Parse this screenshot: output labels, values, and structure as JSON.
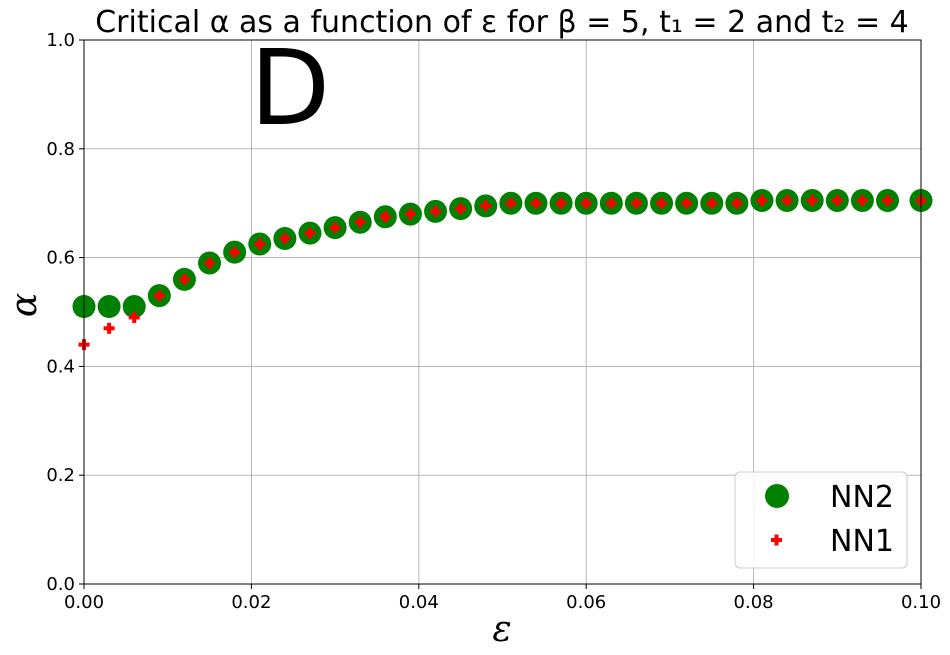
{
  "chart_data": {
    "type": "scatter",
    "title": "Critical α as a function of ε for β = 5, t₁ = 2 and t₂ = 4",
    "panel_label": "D",
    "xlabel": "ε",
    "ylabel": "α",
    "xlim": [
      0.0,
      0.1
    ],
    "ylim": [
      0.0,
      1.0
    ],
    "x_ticks": [
      "0.00",
      "0.02",
      "0.04",
      "0.06",
      "0.08",
      "0.10"
    ],
    "y_ticks": [
      "0.0",
      "0.2",
      "0.4",
      "0.6",
      "0.8",
      "1.0"
    ],
    "x_tick_values": [
      0.0,
      0.02,
      0.04,
      0.06,
      0.08,
      0.1
    ],
    "y_tick_values": [
      0.0,
      0.2,
      0.4,
      0.6,
      0.8,
      1.0
    ],
    "grid": true,
    "legend_position": "bottom-right",
    "series": [
      {
        "name": "NN2",
        "marker": "circle",
        "color": "#008000",
        "x": [
          0.0,
          0.003,
          0.006,
          0.009,
          0.012,
          0.015,
          0.018,
          0.021,
          0.024,
          0.027,
          0.03,
          0.033,
          0.036,
          0.039,
          0.042,
          0.045,
          0.048,
          0.051,
          0.054,
          0.057,
          0.06,
          0.063,
          0.066,
          0.069,
          0.072,
          0.075,
          0.078,
          0.081,
          0.084,
          0.087,
          0.09,
          0.093,
          0.096,
          0.1
        ],
        "y": [
          0.51,
          0.51,
          0.51,
          0.53,
          0.56,
          0.59,
          0.61,
          0.625,
          0.635,
          0.645,
          0.655,
          0.665,
          0.675,
          0.68,
          0.685,
          0.69,
          0.695,
          0.7,
          0.7,
          0.7,
          0.7,
          0.7,
          0.7,
          0.7,
          0.7,
          0.7,
          0.7,
          0.705,
          0.705,
          0.705,
          0.705,
          0.705,
          0.705,
          0.705
        ]
      },
      {
        "name": "NN1",
        "marker": "plus",
        "color": "#ff0000",
        "x": [
          0.0,
          0.003,
          0.006,
          0.009,
          0.012,
          0.015,
          0.018,
          0.021,
          0.024,
          0.027,
          0.03,
          0.033,
          0.036,
          0.039,
          0.042,
          0.045,
          0.048,
          0.051,
          0.054,
          0.057,
          0.06,
          0.063,
          0.066,
          0.069,
          0.072,
          0.075,
          0.078,
          0.081,
          0.084,
          0.087,
          0.09,
          0.093,
          0.096,
          0.1
        ],
        "y": [
          0.44,
          0.47,
          0.49,
          0.53,
          0.56,
          0.59,
          0.61,
          0.625,
          0.635,
          0.645,
          0.655,
          0.665,
          0.675,
          0.68,
          0.685,
          0.69,
          0.695,
          0.7,
          0.7,
          0.7,
          0.7,
          0.7,
          0.7,
          0.7,
          0.7,
          0.7,
          0.7,
          0.705,
          0.705,
          0.705,
          0.705,
          0.705,
          0.705,
          0.705
        ]
      }
    ]
  }
}
